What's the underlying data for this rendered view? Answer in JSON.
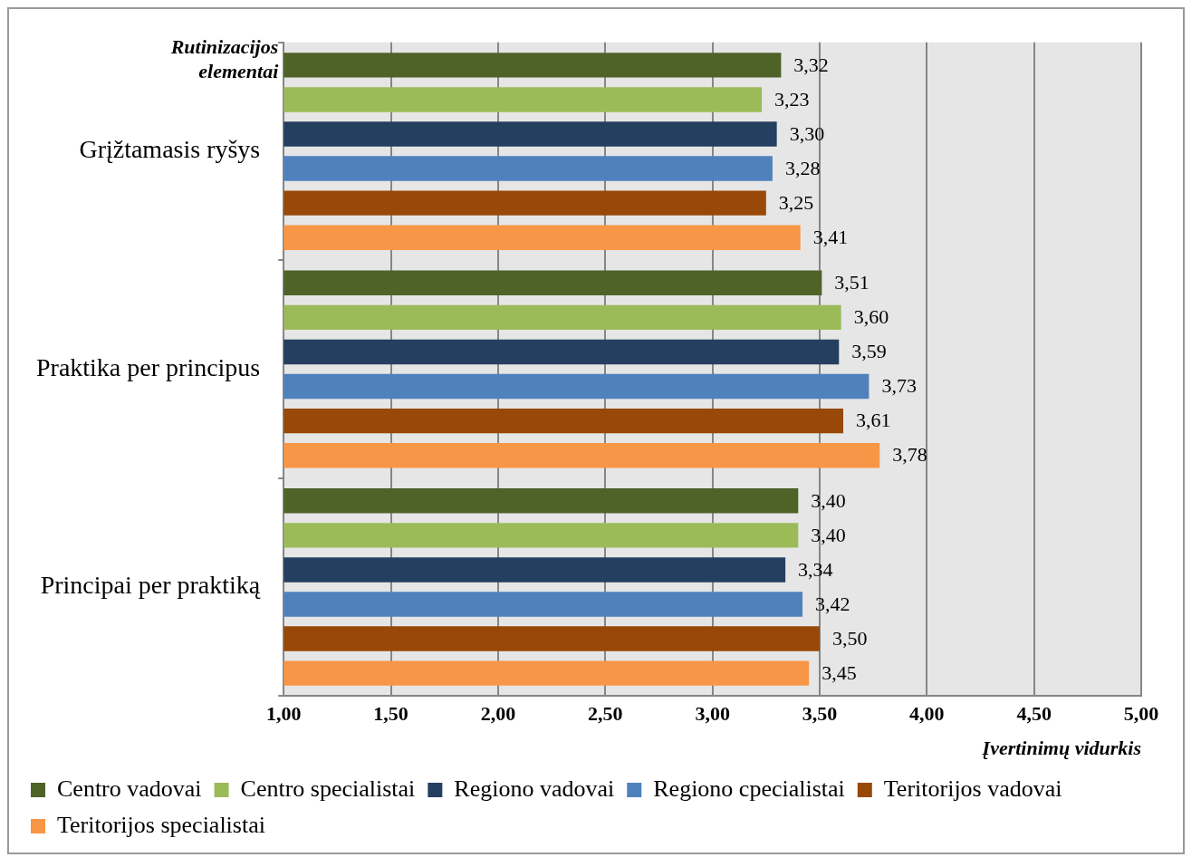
{
  "chart_data": {
    "type": "bar",
    "orientation": "horizontal",
    "ylabel": "Rutinizacijos elementai",
    "xlabel": "Įvertinimų vidurkis",
    "categories": [
      "Grįžtamasis ryšys",
      "Praktika per principus",
      "Principai per praktiką"
    ],
    "series": [
      {
        "name": "Centro vadovai",
        "color": "#4f6228",
        "values": [
          3.32,
          3.51,
          3.4
        ],
        "value_labels": [
          "3,32",
          "3,51",
          "3,40"
        ]
      },
      {
        "name": "Centro specialistai",
        "color": "#9bbb59",
        "values": [
          3.23,
          3.6,
          3.4
        ],
        "value_labels": [
          "3,23",
          "3,60",
          "3,40"
        ]
      },
      {
        "name": "Regiono vadovai",
        "color": "#243f60",
        "values": [
          3.3,
          3.59,
          3.34
        ],
        "value_labels": [
          "3,30",
          "3,59",
          "3,34"
        ]
      },
      {
        "name": "Regiono cpecialistai",
        "color": "#4f81bd",
        "values": [
          3.28,
          3.73,
          3.42
        ],
        "value_labels": [
          "3,28",
          "3,73",
          "3,42"
        ]
      },
      {
        "name": "Teritorijos vadovai",
        "color": "#984807",
        "values": [
          3.25,
          3.61,
          3.5
        ],
        "value_labels": [
          "3,25",
          "3,61",
          "3,50"
        ]
      },
      {
        "name": "Teritorijos specialistai",
        "color": "#f79646",
        "values": [
          3.41,
          3.78,
          3.45
        ],
        "value_labels": [
          "3,41",
          "3,78",
          "3,45"
        ]
      }
    ],
    "xlim": [
      1,
      5
    ],
    "xticks": [
      {
        "value": 1,
        "label": "1,00"
      },
      {
        "value": 1.5,
        "label": "1,50"
      },
      {
        "value": 2,
        "label": "2,00"
      },
      {
        "value": 2.5,
        "label": "2,50"
      },
      {
        "value": 3,
        "label": "3,00"
      },
      {
        "value": 3.5,
        "label": "3,50"
      },
      {
        "value": 4,
        "label": "4,00"
      },
      {
        "value": 4.5,
        "label": "4,50"
      },
      {
        "value": 5,
        "label": "5,00"
      }
    ],
    "grid": "x",
    "legend": "bottom"
  }
}
